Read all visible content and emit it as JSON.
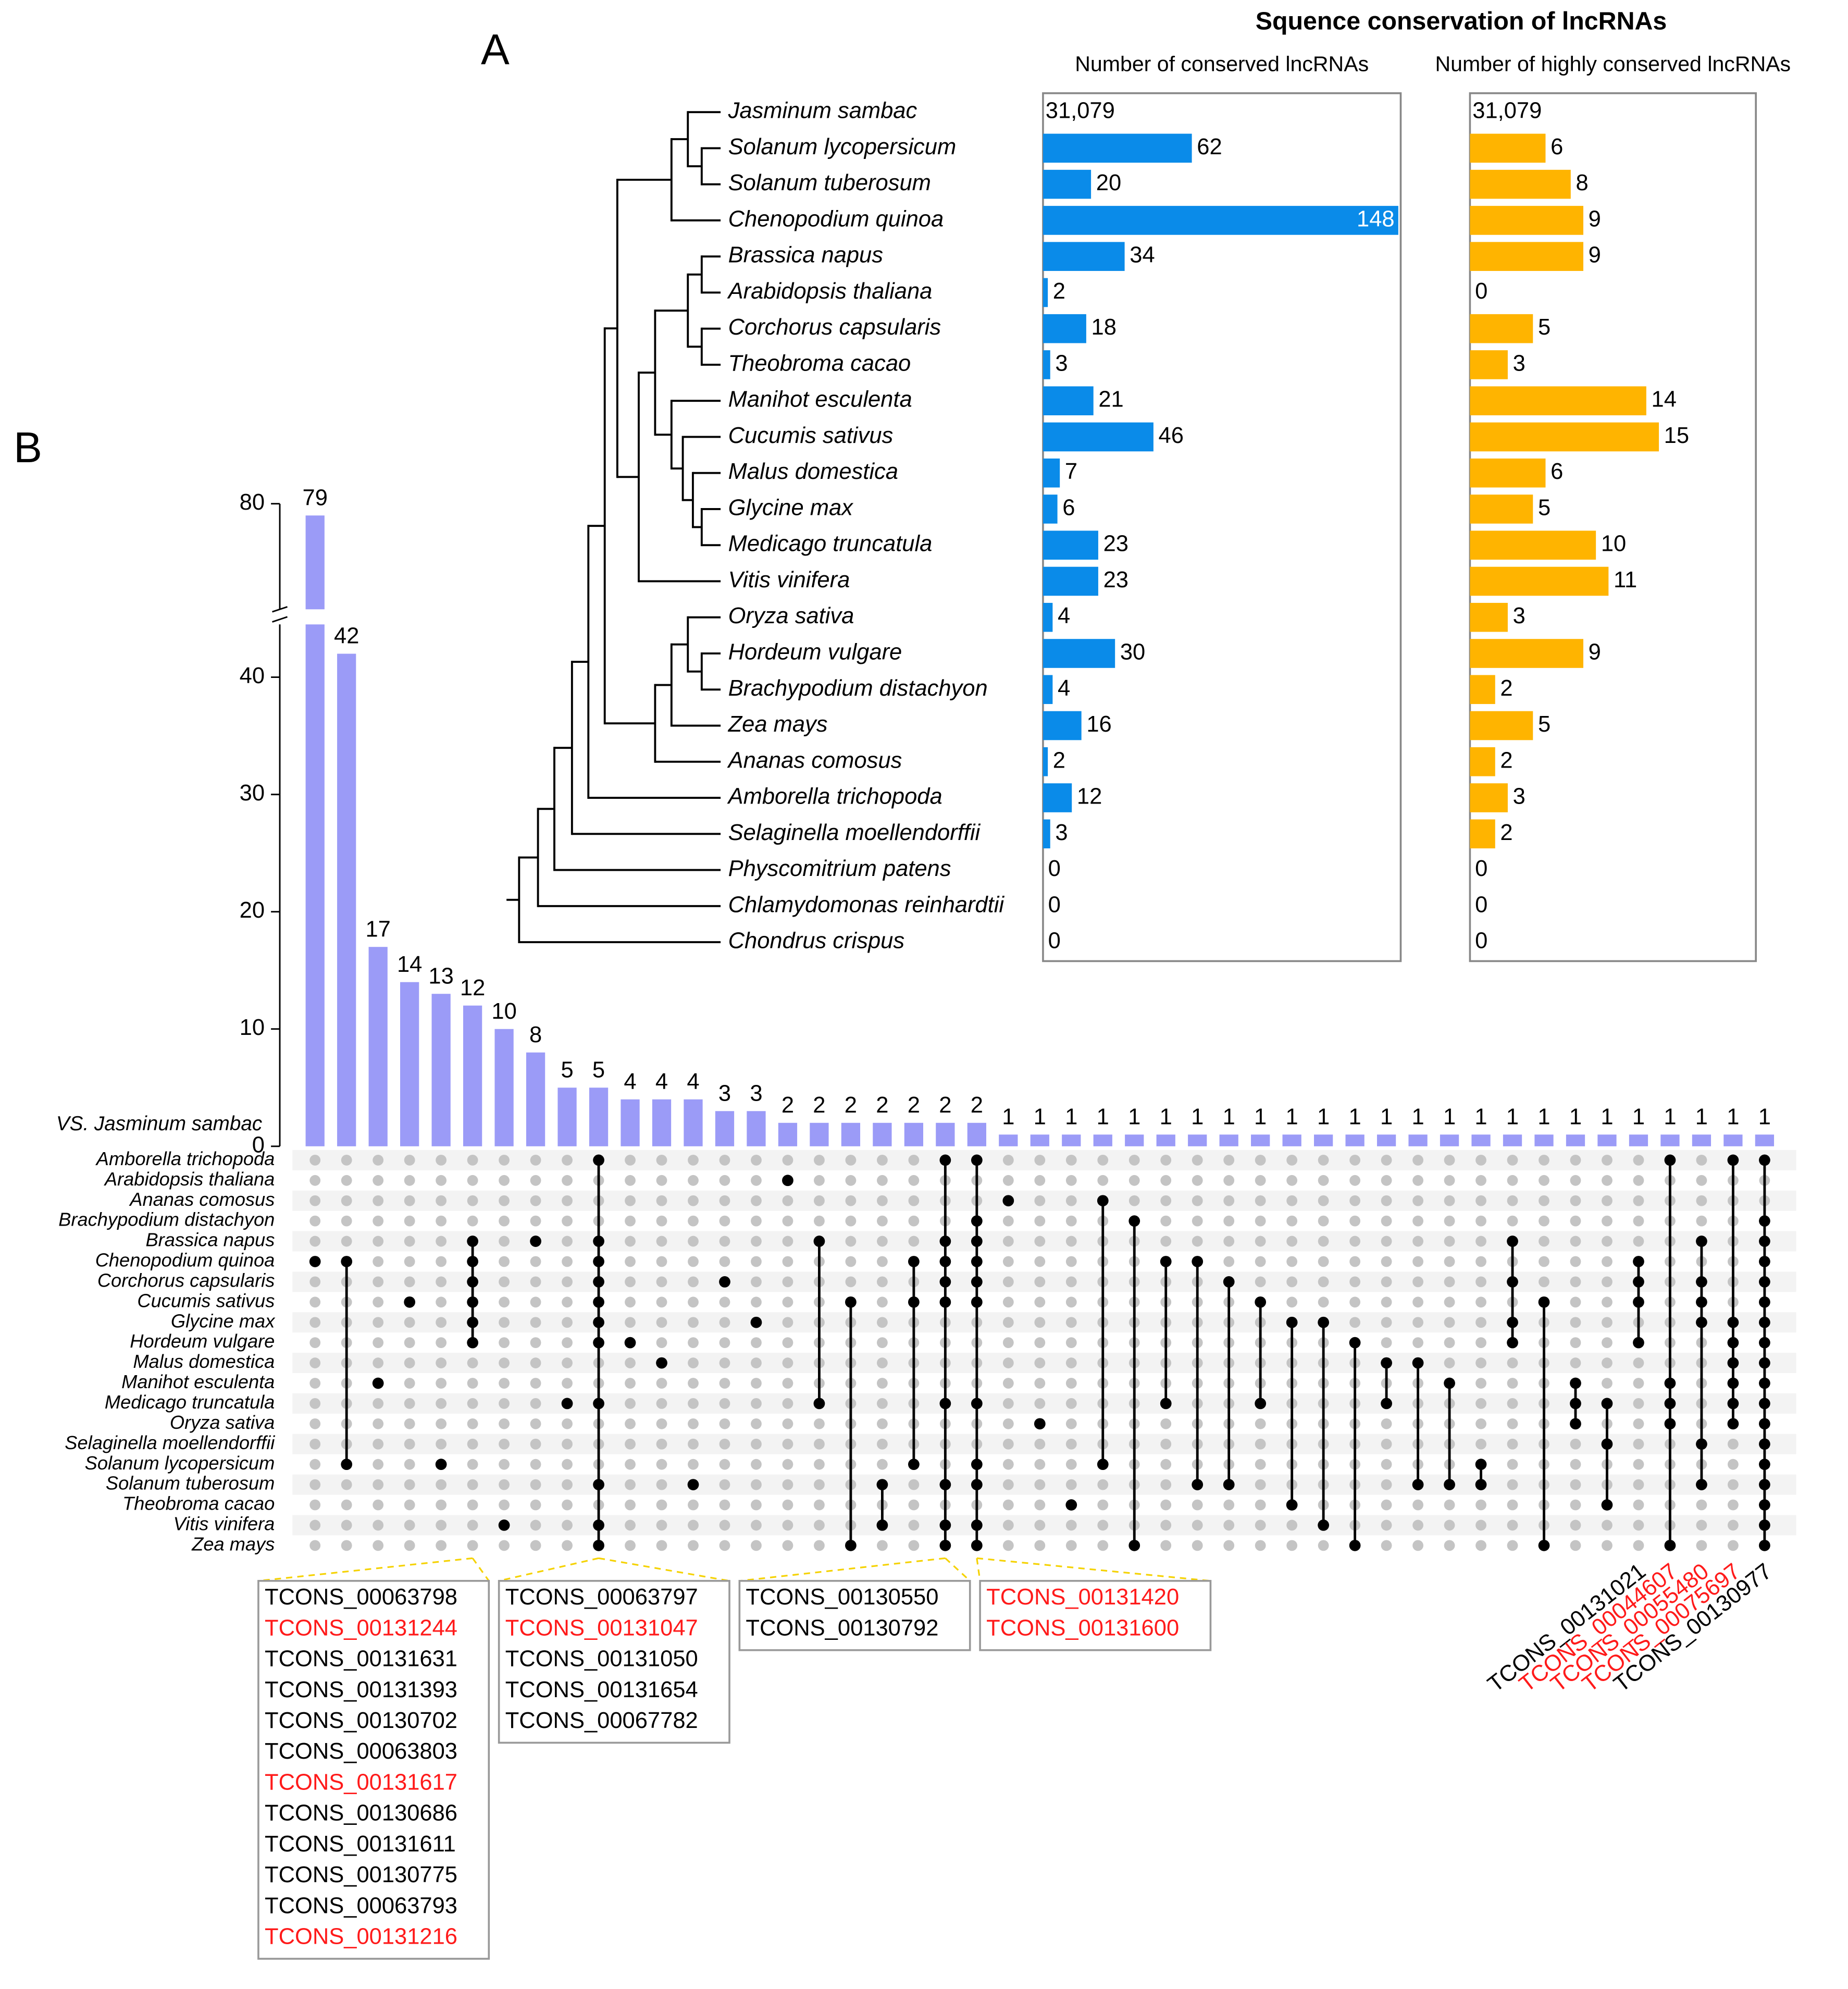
{
  "chart_data": [
    {
      "type": "bar",
      "panel": "A",
      "orientation": "horizontal",
      "title": "Squence conservation of lncRNAs",
      "categories": [
        "Jasminum sambac",
        "Solanum lycopersicum",
        "Solanum tuberosum",
        "Chenopodium quinoa",
        "Brassica napus",
        "Arabidopsis thaliana",
        "Corchorus capsularis",
        "Theobroma cacao",
        "Manihot esculenta",
        "Cucumis sativus",
        "Malus domestica",
        "Glycine max",
        "Medicago truncatula",
        "Vitis vinifera",
        "Oryza sativa",
        "Hordeum vulgare",
        "Brachypodium distachyon",
        "Zea mays",
        "Ananas comosus",
        "Amborella trichopoda",
        "Selaginella moellendorffii",
        "Physcomitrium patens",
        "Chlamydomonas reinhardtii",
        "Chondrus crispus"
      ],
      "series": [
        {
          "name": "Number of conserved lncRNAs",
          "color": "#0a8be9",
          "xlim": [
            0,
            149
          ],
          "reference": {
            "value": 31079,
            "label": "31,079"
          },
          "values": [
            null,
            62,
            20,
            148,
            34,
            2,
            18,
            3,
            21,
            46,
            7,
            6,
            23,
            23,
            4,
            30,
            4,
            16,
            2,
            12,
            3,
            0,
            0,
            0
          ]
        },
        {
          "name": "Number of highly conserved lncRNAs",
          "color": "#ffb400",
          "xlim": [
            0,
            22.7
          ],
          "reference": {
            "value": 31079,
            "label": "31,079"
          },
          "values": [
            null,
            6,
            8,
            9,
            9,
            0,
            5,
            3,
            14,
            15,
            6,
            5,
            10,
            11,
            3,
            9,
            2,
            5,
            2,
            3,
            2,
            0,
            0,
            0
          ]
        }
      ]
    },
    {
      "type": "upset",
      "panel": "B",
      "annotation": "VS. Jasminum sambac",
      "color": "#9b9bf7",
      "highlight_color": "#ff1a1a",
      "ylim": [
        0,
        80
      ],
      "ybreak": [
        44.5,
        71
      ],
      "yticks": [
        0,
        10,
        20,
        30,
        40,
        80
      ],
      "values": [
        79,
        42,
        17,
        14,
        13,
        12,
        10,
        8,
        5,
        5,
        4,
        4,
        4,
        3,
        3,
        2,
        2,
        2,
        2,
        2,
        2,
        2,
        1,
        1,
        1,
        1,
        1,
        1,
        1,
        1,
        1,
        1,
        1,
        1,
        1,
        1,
        1,
        1,
        1,
        1,
        1,
        1,
        1,
        1,
        1,
        1,
        1
      ],
      "sets": [
        "Amborella trichopoda",
        "Arabidopsis thaliana",
        "Ananas comosus",
        "Brachypodium distachyon",
        "Brassica napus",
        "Chenopodium quinoa",
        "Corchorus capsularis",
        "Cucumis sativus",
        "Glycine max",
        "Hordeum vulgare",
        "Malus domestica",
        "Manihot esculenta",
        "Medicago truncatula",
        "Oryza sativa",
        "Selaginella moellendorffii",
        "Solanum lycopersicum",
        "Solanum tuberosum",
        "Theobroma cacao",
        "Vitis vinifera",
        "Zea mays"
      ],
      "members": [
        [
          5
        ],
        [
          5,
          15
        ],
        [
          11
        ],
        [
          7
        ],
        [
          15
        ],
        [
          4,
          5,
          6,
          7,
          8,
          9
        ],
        [
          18
        ],
        [
          4
        ],
        [
          12
        ],
        [
          0,
          4,
          5,
          6,
          7,
          8,
          9,
          12,
          16,
          18,
          19
        ],
        [
          9
        ],
        [
          10
        ],
        [
          16
        ],
        [
          6
        ],
        [
          8
        ],
        [
          1
        ],
        [
          4,
          12
        ],
        [
          7,
          19
        ],
        [
          16,
          18
        ],
        [
          5,
          7,
          15
        ],
        [
          0,
          4,
          5,
          6,
          7,
          12,
          16,
          18,
          19
        ],
        [
          0,
          3,
          4,
          5,
          6,
          7,
          12,
          15,
          16,
          18,
          19
        ],
        [
          2
        ],
        [
          13
        ],
        [
          17
        ],
        [
          2,
          15
        ],
        [
          3,
          19
        ],
        [
          5,
          12
        ],
        [
          5,
          16
        ],
        [
          6,
          16
        ],
        [
          7,
          12
        ],
        [
          8,
          17
        ],
        [
          8,
          18
        ],
        [
          9,
          19
        ],
        [
          10,
          12
        ],
        [
          10,
          16
        ],
        [
          11,
          16
        ],
        [
          15,
          16
        ],
        [
          4,
          6,
          8,
          9
        ],
        [
          7,
          19
        ],
        [
          11,
          12,
          13
        ],
        [
          12,
          14,
          17
        ],
        [
          5,
          6,
          7,
          9
        ],
        [
          0,
          11,
          12,
          13,
          19
        ],
        [
          4,
          6,
          7,
          8,
          14,
          16
        ],
        [
          0,
          8,
          9,
          10,
          11,
          12,
          13
        ],
        [
          0,
          3,
          4,
          5,
          6,
          7,
          8,
          9,
          10,
          11,
          12,
          13,
          14,
          15,
          16,
          17,
          18,
          19
        ]
      ],
      "transcript_groups": [
        {
          "intersection": 5,
          "ids": [
            "TCONS_00063798",
            "TCONS_00131244",
            "TCONS_00131631",
            "TCONS_00131393",
            "TCONS_00130702",
            "TCONS_00063803",
            "TCONS_00131617",
            "TCONS_00130686",
            "TCONS_00131611",
            "TCONS_00130775",
            "TCONS_00063793",
            "TCONS_00131216"
          ],
          "highlight": [
            false,
            true,
            false,
            false,
            false,
            false,
            true,
            false,
            false,
            false,
            false,
            true
          ]
        },
        {
          "intersection": 9,
          "ids": [
            "TCONS_00063797",
            "TCONS_00131047",
            "TCONS_00131050",
            "TCONS_00131654",
            "TCONS_00067782"
          ],
          "highlight": [
            false,
            true,
            false,
            false,
            false
          ]
        },
        {
          "intersection": 20,
          "ids": [
            "TCONS_00130550",
            "TCONS_00130792"
          ],
          "highlight": [
            false,
            false
          ]
        },
        {
          "intersection": 21,
          "ids": [
            "TCONS_00131420",
            "TCONS_00131600"
          ],
          "highlight": [
            true,
            true
          ]
        }
      ],
      "transcript_labels": [
        {
          "intersection": 42,
          "id": "TCONS_00131021",
          "highlight": false
        },
        {
          "intersection": 43,
          "id": "TCONS_00044607",
          "highlight": true
        },
        {
          "intersection": 44,
          "id": "TCONS_00055480",
          "highlight": true
        },
        {
          "intersection": 45,
          "id": "TCONS_00075697",
          "highlight": true
        },
        {
          "intersection": 46,
          "id": "TCONS_00130977",
          "highlight": false
        }
      ]
    }
  ]
}
